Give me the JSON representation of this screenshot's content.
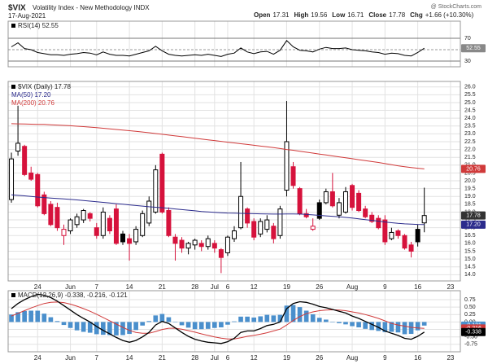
{
  "header": {
    "symbol": "$VIX",
    "name": "Volatility Index - New Methodology INDX",
    "date": "17-Aug-2021",
    "source": "@ StockCharts.com",
    "quote": [
      {
        "label": "Open",
        "value": 17.31
      },
      {
        "label": "High",
        "value": 19.56
      },
      {
        "label": "Low",
        "value": 16.71
      },
      {
        "label": "Close",
        "value": 17.78
      },
      {
        "label": "Chg",
        "value": "+1.66 (+10.30%)"
      }
    ]
  },
  "chart_data": [
    {
      "type": "line",
      "ylim": [
        20,
        100
      ],
      "yticks": [
        30,
        70
      ],
      "midline": 50,
      "series": [
        {
          "name": "RSI(14) 52.55",
          "color": "#000000",
          "tag": "52.55",
          "values": [
            55,
            62,
            52,
            50,
            45,
            43,
            41,
            41,
            40,
            42,
            43,
            45,
            44,
            41,
            46,
            42,
            40,
            40,
            39,
            42,
            45,
            48,
            56,
            48,
            42,
            40,
            39,
            40,
            41,
            40,
            42,
            40,
            38,
            42,
            44,
            53,
            46,
            43,
            46,
            47,
            42,
            49,
            66,
            55,
            49,
            48,
            46,
            51,
            54,
            52,
            52,
            53,
            50,
            49,
            48,
            46,
            45,
            42,
            44,
            43,
            40,
            39,
            45,
            52.55,
            null,
            null,
            null,
            null,
            null
          ]
        }
      ]
    },
    {
      "type": "candlestick",
      "name": "$VIX (Daily) 17.78",
      "tag": "17.78",
      "up_color": "#000000",
      "down_color": "#d6123c",
      "x_labels": true,
      "categories": [
        null,
        null,
        null,
        null,
        "24",
        null,
        null,
        null,
        null,
        "Jun",
        null,
        null,
        null,
        "7",
        null,
        null,
        null,
        null,
        "14",
        null,
        null,
        null,
        null,
        "21",
        null,
        null,
        null,
        null,
        "28",
        null,
        null,
        "Jul",
        null,
        "6",
        null,
        null,
        null,
        "12",
        null,
        null,
        null,
        null,
        "19",
        null,
        null,
        null,
        null,
        "26",
        null,
        null,
        null,
        null,
        "Aug",
        null,
        null,
        null,
        null,
        "9",
        null,
        null,
        null,
        null,
        "16",
        null,
        null,
        null,
        null,
        "23",
        null
      ],
      "open": [
        18.8,
        21.9,
        22.2,
        20.5,
        20.4,
        19.1,
        18.5,
        18.3,
        16.5,
        16.8,
        17.2,
        17.5,
        17.9,
        17.0,
        16.5,
        17.6,
        18.2,
        16.6,
        16.3,
        16.1,
        16.5,
        17.3,
        18.0,
        21.7,
        18.1,
        16.4,
        16.2,
        15.7,
        15.9,
        16.0,
        15.8,
        16.0,
        15.6,
        15.4,
        16.3,
        17.0,
        18.2,
        17.4,
        16.6,
        16.9,
        17.1,
        16.5,
        19.4,
        20.9,
        19.5,
        17.9,
        16.9,
        18.6,
        18.6,
        19.3,
        17.8,
        18.0,
        19.7,
        19.2,
        18.2,
        17.8,
        17.6,
        17.5,
        16.3,
        16.8,
        16.5,
        15.9,
        16.9,
        17.31,
        null,
        null,
        null,
        null,
        null
      ],
      "high": [
        21.8,
        24.8,
        22.3,
        20.9,
        20.5,
        19.3,
        18.7,
        18.6,
        17.2,
        17.6,
        17.9,
        18.2,
        18.0,
        17.3,
        18.3,
        17.8,
        18.5,
        16.8,
        16.6,
        17.1,
        18.1,
        19.0,
        21.0,
        21.8,
        18.3,
        16.6,
        16.4,
        16.1,
        16.3,
        16.2,
        16.5,
        16.2,
        15.7,
        16.5,
        17.1,
        21.2,
        18.3,
        17.6,
        17.6,
        17.8,
        17.3,
        18.4,
        25.1,
        21.2,
        19.6,
        18.2,
        17.6,
        18.8,
        19.5,
        20.5,
        18.9,
        19.6,
        19.8,
        19.4,
        18.4,
        18.0,
        17.8,
        17.8,
        17.0,
        16.9,
        16.6,
        16.1,
        17.2,
        19.56,
        null,
        null,
        null,
        null,
        null
      ],
      "low": [
        18.6,
        21.6,
        20.3,
        20.0,
        18.3,
        17.8,
        17.1,
        16.8,
        15.9,
        16.6,
        17.0,
        17.3,
        17.4,
        16.3,
        16.3,
        16.6,
        15.9,
        15.9,
        14.9,
        15.9,
        16.4,
        17.1,
        17.9,
        17.9,
        16.4,
        14.9,
        15.4,
        15.3,
        15.6,
        15.5,
        15.6,
        15.4,
        14.1,
        15.2,
        16.1,
        16.9,
        17.0,
        16.2,
        16.4,
        16.7,
        16.0,
        16.3,
        19.0,
        19.5,
        17.8,
        17.6,
        16.8,
        17.5,
        18.5,
        18.3,
        17.6,
        17.9,
        18.1,
        18.0,
        17.6,
        17.3,
        16.9,
        15.9,
        16.2,
        16.3,
        15.6,
        15.1,
        15.8,
        16.71,
        null,
        null,
        null,
        null,
        null
      ],
      "close": [
        21.4,
        22.4,
        20.4,
        20.1,
        18.4,
        17.9,
        17.2,
        17.0,
        16.9,
        17.5,
        17.7,
        18.1,
        17.6,
        16.5,
        18.0,
        16.8,
        16.0,
        16.1,
        16.0,
        16.9,
        17.9,
        18.7,
        20.7,
        18.0,
        16.5,
        16.0,
        15.7,
        16.0,
        16.2,
        15.8,
        16.3,
        15.7,
        15.1,
        16.4,
        16.8,
        19.0,
        17.3,
        16.4,
        17.4,
        17.5,
        16.3,
        18.2,
        22.5,
        19.7,
        17.9,
        17.7,
        17.1,
        17.6,
        19.3,
        18.4,
        18.6,
        19.3,
        18.3,
        18.1,
        17.7,
        17.4,
        17.0,
        16.1,
        16.7,
        16.5,
        15.7,
        15.5,
        16.1,
        17.78,
        null,
        null,
        null,
        null,
        null
      ],
      "series": [
        {
          "name": "MA(50) 17.20",
          "color": "#2b2b8c",
          "tag": "17.20",
          "values": [
            19.1,
            19.07,
            19.04,
            19.0,
            18.96,
            18.93,
            18.9,
            18.87,
            18.84,
            18.81,
            18.78,
            18.74,
            18.7,
            18.66,
            18.62,
            18.58,
            18.54,
            18.5,
            18.46,
            18.42,
            18.38,
            18.34,
            18.31,
            18.28,
            18.24,
            18.2,
            18.16,
            18.12,
            18.08,
            18.04,
            18.01,
            17.98,
            17.96,
            17.94,
            17.93,
            17.92,
            17.91,
            17.9,
            17.89,
            17.88,
            17.87,
            17.87,
            17.88,
            17.88,
            17.87,
            17.85,
            17.82,
            17.79,
            17.76,
            17.73,
            17.7,
            17.66,
            17.62,
            17.57,
            17.52,
            17.47,
            17.42,
            17.37,
            17.32,
            17.28,
            17.25,
            17.23,
            17.21,
            17.2,
            null,
            null,
            null,
            null,
            null
          ]
        },
        {
          "name": "MA(200) 20.76",
          "color": "#d03a3a",
          "tag": "20.76",
          "values": [
            23.65,
            23.64,
            23.63,
            23.62,
            23.61,
            23.6,
            23.58,
            23.56,
            23.54,
            23.52,
            23.49,
            23.46,
            23.43,
            23.4,
            23.36,
            23.32,
            23.28,
            23.24,
            23.2,
            23.16,
            23.12,
            23.07,
            23.02,
            22.97,
            22.92,
            22.87,
            22.82,
            22.77,
            22.72,
            22.67,
            22.62,
            22.57,
            22.52,
            22.47,
            22.42,
            22.37,
            22.32,
            22.27,
            22.22,
            22.17,
            22.12,
            22.06,
            22.0,
            21.95,
            21.89,
            21.83,
            21.77,
            21.71,
            21.65,
            21.59,
            21.53,
            21.47,
            21.41,
            21.35,
            21.29,
            21.23,
            21.17,
            21.1,
            21.03,
            20.96,
            20.9,
            20.85,
            20.8,
            20.76,
            null,
            null,
            null,
            null,
            null
          ]
        }
      ],
      "ylim": [
        13.6,
        26.35
      ],
      "yticks": [
        {
          "value": 14,
          "label": "14.0"
        },
        14.5,
        {
          "value": 15,
          "label": "15.0"
        },
        15.5,
        {
          "value": 16,
          "label": "16.0"
        },
        16.5,
        {
          "value": 17,
          "label": "17.0"
        },
        17.5,
        {
          "value": 18,
          "label": "18.0"
        },
        18.5,
        {
          "value": 19,
          "label": "19.0"
        },
        19.5,
        {
          "value": 20,
          "label": "20.0"
        },
        20.5,
        {
          "value": 21,
          "label": "21.0"
        },
        21.5,
        {
          "value": 22,
          "label": "22.0"
        },
        22.5,
        {
          "value": 23,
          "label": "23.0"
        },
        23.5,
        {
          "value": 24,
          "label": "24.0"
        },
        24.5,
        {
          "value": 25,
          "label": "25.0"
        },
        25.5,
        {
          "value": 26,
          "label": "26.0"
        }
      ]
    },
    {
      "type": "macd",
      "name": "MACD(12,26,9) -0.338, -0.216, -0.121",
      "x_labels": true,
      "categories": [
        null,
        null,
        null,
        null,
        "24",
        null,
        null,
        null,
        null,
        "Jun",
        null,
        null,
        null,
        "7",
        null,
        null,
        null,
        null,
        "14",
        null,
        null,
        null,
        null,
        "21",
        null,
        null,
        null,
        null,
        "28",
        null,
        null,
        "Jul",
        null,
        "6",
        null,
        null,
        null,
        "12",
        null,
        null,
        null,
        null,
        "19",
        null,
        null,
        null,
        null,
        "26",
        null,
        null,
        null,
        null,
        "Aug",
        null,
        null,
        null,
        null,
        "9",
        null,
        null,
        null,
        null,
        "16",
        null,
        null,
        null,
        null,
        "23",
        null
      ],
      "ylim": [
        -1,
        1.05
      ],
      "yticks": [
        -0.75,
        {
          "value": -0.5,
          "label": "-0.50"
        },
        -0.25,
        {
          "value": 0,
          "label": "0.00"
        },
        0.25,
        {
          "value": 0.5,
          "label": "0.50"
        },
        0.75
      ],
      "histogram": {
        "color": "#4a8fcc",
        "tag": "-0.121",
        "values": [
          0.25,
          0.33,
          0.37,
          0.38,
          0.38,
          0.28,
          0.16,
          0.03,
          -0.1,
          -0.2,
          -0.28,
          -0.33,
          -0.36,
          -0.41,
          -0.43,
          -0.44,
          -0.45,
          -0.44,
          -0.4,
          -0.27,
          -0.12,
          0.03,
          0.22,
          0.27,
          0.16,
          0.01,
          -0.11,
          -0.19,
          -0.24,
          -0.24,
          -0.23,
          -0.2,
          -0.18,
          -0.09,
          0.02,
          0.18,
          0.18,
          0.15,
          0.19,
          0.24,
          0.22,
          0.24,
          0.55,
          0.57,
          0.5,
          0.38,
          0.26,
          0.14,
          0.08,
          0.01,
          -0.04,
          -0.08,
          -0.14,
          -0.18,
          -0.23,
          -0.27,
          -0.3,
          -0.34,
          -0.33,
          -0.35,
          -0.41,
          -0.4,
          -0.28,
          -0.121,
          null,
          null,
          null,
          null,
          null
        ]
      },
      "macd": {
        "color": "#000000",
        "tag": "-0.338",
        "values": [
          0.45,
          0.62,
          0.75,
          0.85,
          0.93,
          0.9,
          0.82,
          0.7,
          0.55,
          0.4,
          0.25,
          0.12,
          0.0,
          -0.15,
          -0.28,
          -0.4,
          -0.52,
          -0.62,
          -0.68,
          -0.62,
          -0.5,
          -0.35,
          -0.1,
          0.02,
          -0.05,
          -0.2,
          -0.35,
          -0.48,
          -0.58,
          -0.64,
          -0.68,
          -0.7,
          -0.72,
          -0.66,
          -0.55,
          -0.35,
          -0.3,
          -0.3,
          -0.22,
          -0.12,
          -0.08,
          0.0,
          0.45,
          0.62,
          0.68,
          0.66,
          0.6,
          0.52,
          0.48,
          0.42,
          0.36,
          0.3,
          0.2,
          0.12,
          0.02,
          -0.08,
          -0.18,
          -0.3,
          -0.38,
          -0.45,
          -0.55,
          -0.58,
          -0.48,
          -0.338,
          null,
          null,
          null,
          null,
          null
        ]
      },
      "signal": {
        "color": "#d03a3a",
        "tag": "-0.216",
        "values": [
          0.2,
          0.29,
          0.38,
          0.47,
          0.55,
          0.62,
          0.66,
          0.67,
          0.65,
          0.6,
          0.53,
          0.45,
          0.36,
          0.26,
          0.15,
          0.04,
          -0.07,
          -0.18,
          -0.28,
          -0.35,
          -0.38,
          -0.38,
          -0.32,
          -0.25,
          -0.21,
          -0.21,
          -0.24,
          -0.29,
          -0.34,
          -0.4,
          -0.45,
          -0.5,
          -0.54,
          -0.57,
          -0.57,
          -0.53,
          -0.48,
          -0.45,
          -0.41,
          -0.36,
          -0.3,
          -0.24,
          -0.1,
          0.05,
          0.18,
          0.28,
          0.34,
          0.38,
          0.4,
          0.41,
          0.4,
          0.38,
          0.34,
          0.3,
          0.25,
          0.19,
          0.12,
          0.04,
          -0.05,
          -0.1,
          -0.14,
          -0.18,
          -0.2,
          -0.216,
          null,
          null,
          null,
          null,
          null
        ]
      }
    }
  ]
}
